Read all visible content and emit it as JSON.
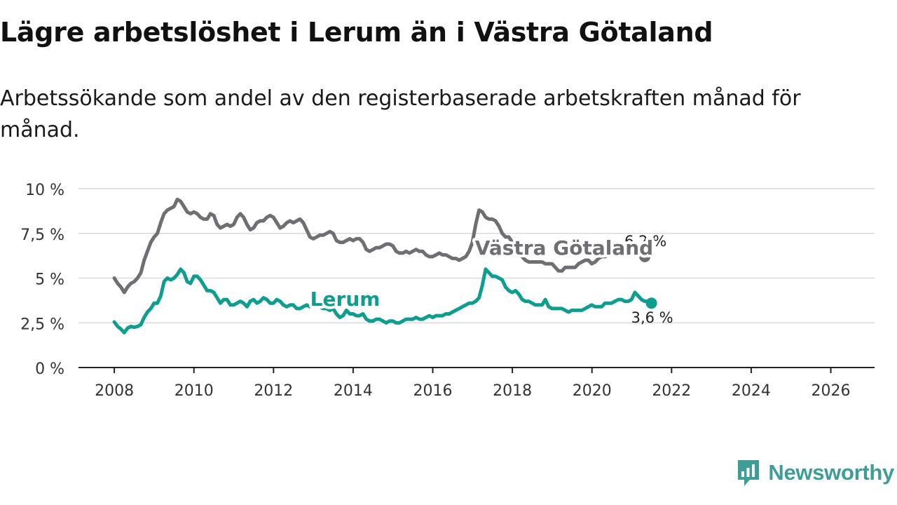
{
  "header": {
    "title": "Lägre arbetslöshet i Lerum än i Västra Götaland",
    "subtitle": "Arbetssökande som andel av den registerbaserade arbetskraften månad för månad."
  },
  "brand": {
    "name": "Newsworthy",
    "icon": "newsworthy-logo-icon",
    "color": "#3e9e97"
  },
  "chart_data": {
    "type": "line",
    "x_start": 2008.0,
    "x_step": 0.0833,
    "xlim": [
      2007.1,
      2027.1
    ],
    "ylim": [
      0,
      10
    ],
    "x_ticks": [
      {
        "value": 2008,
        "label": "2008"
      },
      {
        "value": 2010,
        "label": "2010"
      },
      {
        "value": 2012,
        "label": "2012"
      },
      {
        "value": 2014,
        "label": "2014"
      },
      {
        "value": 2016,
        "label": "2016"
      },
      {
        "value": 2018,
        "label": "2018"
      },
      {
        "value": 2020,
        "label": "2020"
      },
      {
        "value": 2022,
        "label": "2022"
      },
      {
        "value": 2024,
        "label": "2024"
      },
      {
        "value": 2026,
        "label": "2026"
      }
    ],
    "y_ticks": [
      {
        "value": 0,
        "label": "0 %"
      },
      {
        "value": 2.5,
        "label": "2,5 %"
      },
      {
        "value": 5,
        "label": "5 %"
      },
      {
        "value": 7.5,
        "label": "7,5 %"
      },
      {
        "value": 10,
        "label": "10 %"
      }
    ],
    "grid": true,
    "series": [
      {
        "name": "Västra Götaland",
        "color": "#6e6e73",
        "label_at": 2019.3,
        "label_value": 6.7,
        "end_label": "6,2 %",
        "values": [
          5.0,
          4.7,
          4.5,
          4.2,
          4.5,
          4.7,
          4.8,
          5.0,
          5.3,
          6.0,
          6.5,
          7.0,
          7.3,
          7.5,
          8.1,
          8.6,
          8.8,
          8.9,
          9.0,
          9.4,
          9.3,
          9.0,
          8.7,
          8.6,
          8.7,
          8.6,
          8.4,
          8.3,
          8.3,
          8.6,
          8.5,
          8.0,
          7.8,
          7.9,
          8.0,
          7.9,
          8.0,
          8.4,
          8.6,
          8.4,
          8.0,
          7.7,
          7.8,
          8.1,
          8.2,
          8.2,
          8.4,
          8.5,
          8.4,
          8.1,
          7.8,
          7.9,
          8.1,
          8.2,
          8.1,
          8.2,
          8.3,
          8.1,
          7.7,
          7.3,
          7.2,
          7.3,
          7.4,
          7.4,
          7.5,
          7.6,
          7.5,
          7.1,
          7.0,
          7.0,
          7.1,
          7.2,
          7.1,
          7.2,
          7.2,
          7.0,
          6.6,
          6.5,
          6.6,
          6.7,
          6.7,
          6.8,
          6.9,
          6.9,
          6.8,
          6.5,
          6.4,
          6.4,
          6.5,
          6.4,
          6.5,
          6.6,
          6.5,
          6.5,
          6.3,
          6.2,
          6.2,
          6.3,
          6.4,
          6.3,
          6.3,
          6.2,
          6.1,
          6.1,
          6.0,
          6.1,
          6.2,
          6.5,
          7.0,
          8.0,
          8.8,
          8.7,
          8.4,
          8.3,
          8.3,
          8.2,
          7.9,
          7.5,
          7.3,
          7.3,
          7.0,
          6.7,
          6.4,
          6.2,
          6.0,
          5.9,
          5.9,
          5.9,
          5.9,
          5.9,
          5.8,
          5.8,
          5.8,
          5.6,
          5.4,
          5.4,
          5.6,
          5.6,
          5.6,
          5.6,
          5.8,
          5.9,
          6.0,
          6.0,
          5.8,
          5.9,
          6.1,
          6.2,
          6.2,
          6.3,
          6.5,
          6.6,
          6.5,
          6.3,
          6.3,
          6.4,
          6.5,
          6.3,
          6.3,
          6.3,
          6.2
        ]
      },
      {
        "name": "Lerum",
        "color": "#0e9e8f",
        "label_at": 2013.8,
        "label_value": 3.85,
        "end_label": "3,6 %",
        "values": [
          2.55,
          2.3,
          2.15,
          1.95,
          2.2,
          2.3,
          2.25,
          2.3,
          2.4,
          2.8,
          3.1,
          3.3,
          3.6,
          3.6,
          4.0,
          4.8,
          5.0,
          4.9,
          5.0,
          5.2,
          5.5,
          5.3,
          4.8,
          4.7,
          5.1,
          5.1,
          4.9,
          4.6,
          4.3,
          4.3,
          4.2,
          3.9,
          3.6,
          3.8,
          3.8,
          3.5,
          3.5,
          3.6,
          3.7,
          3.6,
          3.4,
          3.7,
          3.8,
          3.6,
          3.7,
          3.9,
          3.8,
          3.6,
          3.6,
          3.8,
          3.7,
          3.5,
          3.4,
          3.5,
          3.5,
          3.3,
          3.3,
          3.4,
          3.5,
          3.4,
          3.4,
          3.5,
          3.4,
          3.3,
          3.3,
          3.2,
          3.3,
          3.0,
          2.8,
          2.9,
          3.2,
          3.0,
          3.0,
          2.9,
          2.9,
          3.0,
          2.7,
          2.6,
          2.6,
          2.7,
          2.7,
          2.6,
          2.5,
          2.6,
          2.6,
          2.5,
          2.5,
          2.6,
          2.7,
          2.7,
          2.7,
          2.8,
          2.7,
          2.7,
          2.8,
          2.9,
          2.8,
          2.9,
          2.9,
          2.9,
          3.0,
          3.0,
          3.1,
          3.2,
          3.3,
          3.4,
          3.5,
          3.6,
          3.6,
          3.7,
          3.9,
          4.6,
          5.5,
          5.3,
          5.1,
          5.1,
          5.0,
          4.9,
          4.5,
          4.3,
          4.2,
          4.3,
          4.1,
          3.8,
          3.7,
          3.7,
          3.6,
          3.5,
          3.5,
          3.5,
          3.8,
          3.4,
          3.3,
          3.3,
          3.3,
          3.3,
          3.2,
          3.1,
          3.2,
          3.2,
          3.2,
          3.2,
          3.3,
          3.4,
          3.5,
          3.4,
          3.4,
          3.4,
          3.6,
          3.6,
          3.6,
          3.7,
          3.8,
          3.8,
          3.7,
          3.7,
          3.8,
          4.2,
          4.0,
          3.8,
          3.7,
          3.7,
          3.6
        ]
      }
    ]
  }
}
